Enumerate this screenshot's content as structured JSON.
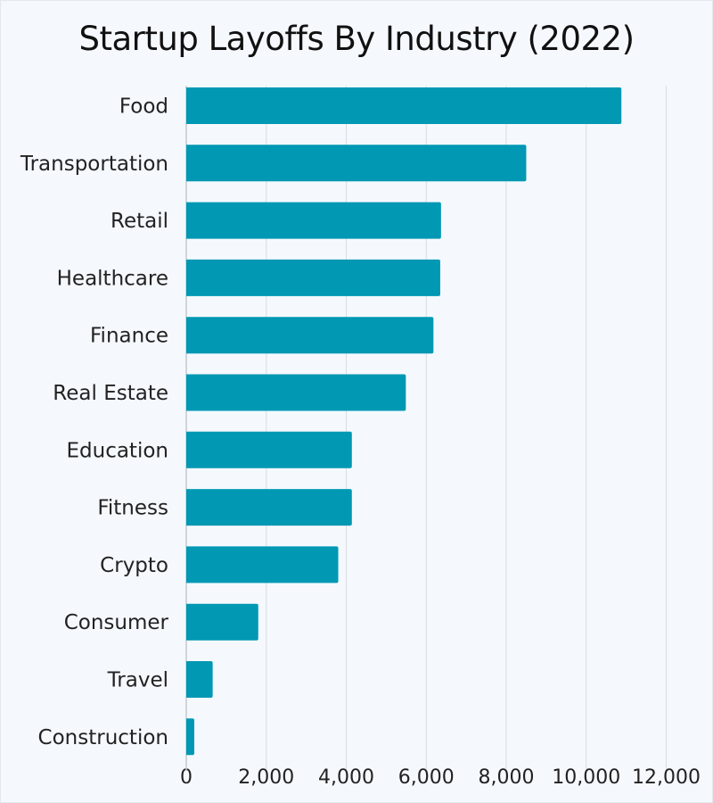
{
  "chart_data": {
    "type": "bar",
    "orientation": "horizontal",
    "title": "Startup Layoffs By Industry (2022)",
    "xlabel": "",
    "ylabel": "",
    "categories": [
      "Food",
      "Transportation",
      "Retail",
      "Healthcare",
      "Finance",
      "Real Estate",
      "Education",
      "Fitness",
      "Crypto",
      "Consumer",
      "Travel",
      "Construction"
    ],
    "values": [
      10880,
      8500,
      6370,
      6350,
      6180,
      5490,
      4140,
      4140,
      3800,
      1800,
      660,
      200
    ],
    "xlim": [
      0,
      12000
    ],
    "xticks": [
      0,
      2000,
      4000,
      6000,
      8000,
      10000,
      12000
    ],
    "xtick_labels": [
      "0",
      "2,000",
      "4,000",
      "6,000",
      "8,000",
      "10,000",
      "12,000"
    ],
    "grid": "vertical",
    "legend": "none",
    "colors": {
      "bar": "#0098b3",
      "grid": "#d8dde2",
      "background": "#f5f9fe"
    }
  }
}
